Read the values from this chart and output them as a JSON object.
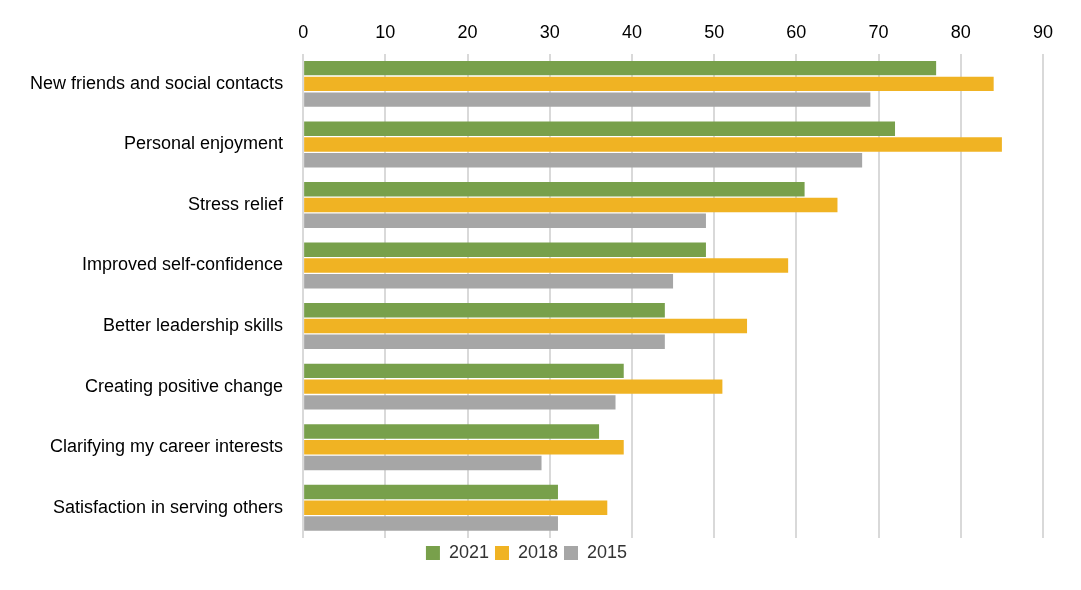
{
  "chart_data": {
    "type": "bar",
    "orientation": "horizontal",
    "categories": [
      "New friends and social contacts",
      "Personal enjoyment",
      "Stress relief",
      "Improved self-confidence",
      "Better leadership skills",
      "Creating positive change",
      "Clarifying my career interests",
      "Satisfaction in serving others"
    ],
    "series": [
      {
        "name": "2021",
        "color": "#78a04b",
        "values": [
          77,
          72,
          61,
          49,
          44,
          39,
          36,
          31
        ]
      },
      {
        "name": "2018",
        "color": "#f0b323",
        "values": [
          84,
          85,
          65,
          59,
          54,
          51,
          39,
          37
        ]
      },
      {
        "name": "2015",
        "color": "#a6a6a6",
        "values": [
          69,
          68,
          49,
          45,
          44,
          38,
          29,
          31
        ]
      }
    ],
    "xlim": [
      0,
      90
    ],
    "xticks": [
      0,
      10,
      20,
      30,
      40,
      50,
      60,
      70,
      80,
      90
    ],
    "grid": "x",
    "legend": "bottom"
  }
}
